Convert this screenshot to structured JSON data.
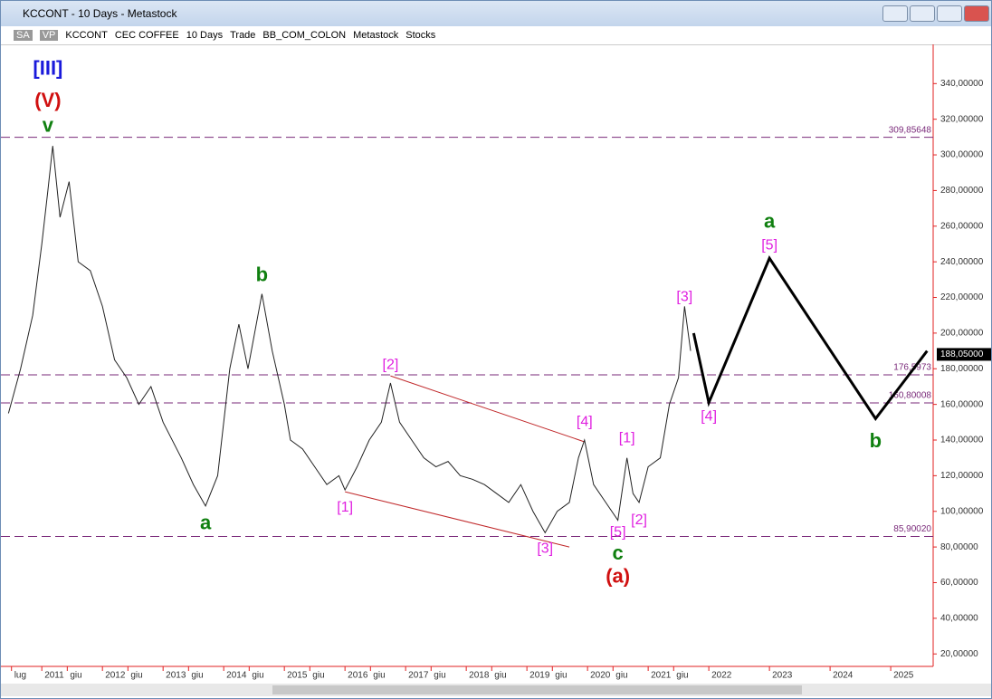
{
  "window": {
    "title": "KCCONT - 10 Days - Metastock",
    "toolbar": [
      "SA",
      "VP",
      "KCCONT",
      "CEC COFFEE",
      "10 Days",
      "Trade",
      "BB_COM_COLON",
      "Metastock",
      "Stocks"
    ]
  },
  "chart_data": {
    "type": "line",
    "ylim": [
      13,
      362
    ],
    "yticks": [
      {
        "value": 20,
        "label": "20,00000"
      },
      {
        "value": 40,
        "label": "40,00000"
      },
      {
        "value": 60,
        "label": "60,00000"
      },
      {
        "value": 80,
        "label": "80,00000"
      },
      {
        "value": 100,
        "label": "100,00000"
      },
      {
        "value": 120,
        "label": "120,00000"
      },
      {
        "value": 140,
        "label": "140,00000"
      },
      {
        "value": 160,
        "label": "160,00000"
      },
      {
        "value": 180,
        "label": "180,00000"
      },
      {
        "value": 200,
        "label": "200,00000"
      },
      {
        "value": 220,
        "label": "220,00000"
      },
      {
        "value": 240,
        "label": "240,00000"
      },
      {
        "value": 260,
        "label": "260,00000"
      },
      {
        "value": 280,
        "label": "280,00000"
      },
      {
        "value": 300,
        "label": "300,00000"
      },
      {
        "value": 320,
        "label": "320,00000"
      },
      {
        "value": 340,
        "label": "340,00000"
      }
    ],
    "xlim": [
      2010.4,
      2025.7
    ],
    "xticks": [
      {
        "value": 2010.5,
        "label": "lug"
      },
      2011,
      {
        "value": 2011.42,
        "label": "giu"
      },
      2012,
      {
        "value": 2012.42,
        "label": "giu"
      },
      2013,
      {
        "value": 2013.42,
        "label": "giu"
      },
      2014,
      {
        "value": 2014.42,
        "label": "giu"
      },
      2015,
      {
        "value": 2015.42,
        "label": "giu"
      },
      2016,
      {
        "value": 2016.42,
        "label": "giu"
      },
      2017,
      {
        "value": 2017.42,
        "label": "giu"
      },
      2018,
      {
        "value": 2018.42,
        "label": "giu"
      },
      2019,
      {
        "value": 2019.42,
        "label": "giu"
      },
      2020,
      {
        "value": 2020.42,
        "label": "giu"
      },
      2021,
      {
        "value": 2021.42,
        "label": "giu"
      },
      2022,
      2023,
      2024,
      2025
    ],
    "series": [
      {
        "color": "#222222",
        "x": [
          2010.45,
          2010.65,
          2010.85,
          2011.0,
          2011.1,
          2011.18,
          2011.3,
          2011.45,
          2011.6,
          2011.8,
          2012.0,
          2012.2,
          2012.4,
          2012.6,
          2012.8,
          2013.0,
          2013.3,
          2013.5,
          2013.7,
          2013.9,
          2014.1,
          2014.25,
          2014.4,
          2014.63,
          2014.8,
          2015.0,
          2015.1,
          2015.3,
          2015.5,
          2015.7,
          2015.9,
          2016.0,
          2016.2,
          2016.4,
          2016.6,
          2016.75,
          2016.9,
          2017.1,
          2017.3,
          2017.5,
          2017.7,
          2017.9,
          2018.1,
          2018.3,
          2018.5,
          2018.7,
          2018.9,
          2019.1,
          2019.3,
          2019.5,
          2019.7,
          2019.85,
          2019.95,
          2020.1,
          2020.3,
          2020.5,
          2020.65,
          2020.75,
          2020.85,
          2021.0,
          2021.2,
          2021.35,
          2021.5,
          2021.6,
          2021.7
        ],
        "values": [
          155,
          180,
          210,
          250,
          280,
          305,
          265,
          285,
          240,
          235,
          215,
          185,
          175,
          160,
          170,
          150,
          130,
          115,
          103,
          120,
          180,
          205,
          180,
          222,
          190,
          160,
          140,
          135,
          125,
          115,
          120,
          112,
          125,
          140,
          150,
          172,
          150,
          140,
          130,
          125,
          128,
          120,
          118,
          115,
          110,
          105,
          115,
          100,
          88,
          100,
          105,
          130,
          140,
          115,
          105,
          95,
          130,
          110,
          105,
          125,
          130,
          160,
          175,
          215,
          190
        ]
      },
      {
        "color": "#000000",
        "x": [
          2021.75,
          2022.0,
          2023.0,
          2024.75,
          2025.6
        ],
        "values": [
          200,
          161,
          242,
          152,
          190
        ]
      }
    ],
    "trend_lines": [
      {
        "color": "#c0282a",
        "x": [
          2016.75,
          2019.95
        ],
        "values": [
          176,
          139
        ]
      },
      {
        "color": "#c0282a",
        "x": [
          2016.0,
          2019.7
        ],
        "values": [
          111,
          80
        ]
      }
    ],
    "levels": [
      {
        "value": 309.85648,
        "label": "309,85648"
      },
      {
        "value": 176.5973,
        "label": "176,5973"
      },
      {
        "value": 160.80008,
        "label": "160,80008"
      },
      {
        "value": 85.9002,
        "label": "85,90020"
      }
    ],
    "level_color": "#7a2a7a",
    "last_price": {
      "value": 188.05,
      "label": "188,05000"
    },
    "annotations": [
      {
        "text": "[III]",
        "x": 2011.1,
        "y": 348,
        "color": "#1a1adb"
      },
      {
        "text": "(V)",
        "x": 2011.1,
        "y": 330,
        "color": "#d01010"
      },
      {
        "text": "v",
        "x": 2011.1,
        "y": 316,
        "color": "#108010"
      },
      {
        "text": "b",
        "x": 2014.63,
        "y": 232,
        "color": "#108010"
      },
      {
        "text": "a",
        "x": 2013.7,
        "y": 93,
        "color": "#108010"
      },
      {
        "text": "[1]",
        "x": 2016.0,
        "y": 102,
        "color": "#e020e0"
      },
      {
        "text": "[2]",
        "x": 2016.75,
        "y": 182,
        "color": "#e020e0"
      },
      {
        "text": "[3]",
        "x": 2019.3,
        "y": 79,
        "color": "#e020e0"
      },
      {
        "text": "[4]",
        "x": 2019.95,
        "y": 150,
        "color": "#e020e0"
      },
      {
        "text": "[5]",
        "x": 2020.5,
        "y": 88,
        "color": "#e020e0"
      },
      {
        "text": "c",
        "x": 2020.5,
        "y": 76,
        "color": "#108010"
      },
      {
        "text": "(a)",
        "x": 2020.5,
        "y": 63,
        "color": "#d01010"
      },
      {
        "text": "[1]",
        "x": 2020.65,
        "y": 141,
        "color": "#e020e0"
      },
      {
        "text": "[2]",
        "x": 2020.85,
        "y": 95,
        "color": "#e020e0"
      },
      {
        "text": "[3]",
        "x": 2021.6,
        "y": 220,
        "color": "#e020e0"
      },
      {
        "text": "[4]",
        "x": 2022.0,
        "y": 153,
        "color": "#e020e0"
      },
      {
        "text": "[5]",
        "x": 2023.0,
        "y": 249,
        "color": "#e020e0"
      },
      {
        "text": "a",
        "x": 2023.0,
        "y": 262,
        "color": "#108010"
      },
      {
        "text": "b",
        "x": 2024.75,
        "y": 139,
        "color": "#108010"
      }
    ]
  }
}
